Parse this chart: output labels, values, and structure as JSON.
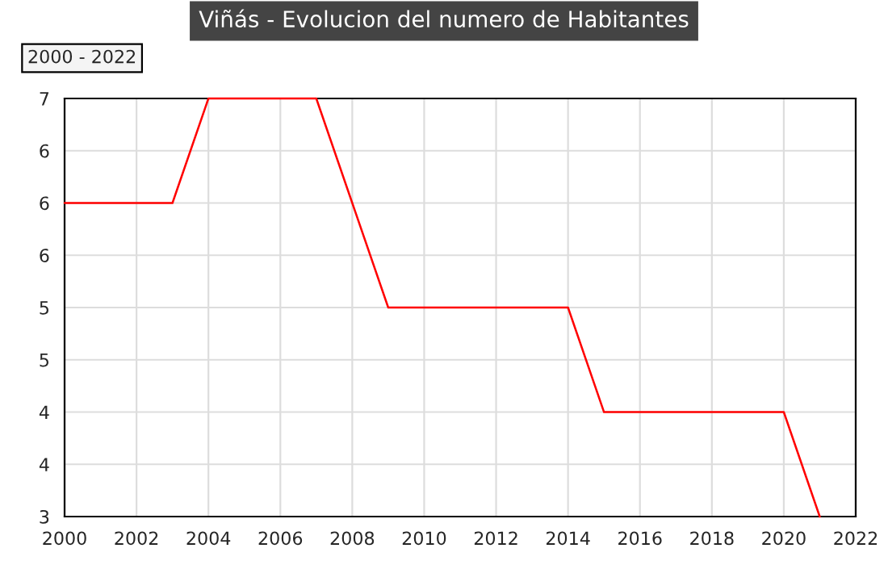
{
  "chart_data": {
    "type": "line",
    "title": "Viñás - Evolucion del numero de Habitantes",
    "annotations": [
      "2000 - 2022"
    ],
    "x": [
      2000,
      2001,
      2002,
      2003,
      2004,
      2005,
      2006,
      2007,
      2008,
      2009,
      2010,
      2011,
      2012,
      2013,
      2014,
      2015,
      2016,
      2017,
      2018,
      2019,
      2020,
      2021
    ],
    "series": [
      {
        "color": "#ff0000",
        "values": [
          6,
          6,
          6,
          6,
          7,
          7,
          7,
          7,
          6,
          5,
          5,
          5,
          5,
          5,
          5,
          4,
          4,
          4,
          4,
          4,
          4,
          3
        ]
      }
    ],
    "xlim": [
      2000,
      2022
    ],
    "xticks": [
      2000,
      2002,
      2004,
      2006,
      2008,
      2010,
      2012,
      2014,
      2016,
      2018,
      2020,
      2022
    ],
    "ylim": [
      3,
      7
    ],
    "yticks": [
      {
        "value": 3,
        "label": "3"
      },
      {
        "value": 3.5,
        "label": "4"
      },
      {
        "value": 4,
        "label": "4"
      },
      {
        "value": 4.5,
        "label": "5"
      },
      {
        "value": 5,
        "label": "5"
      },
      {
        "value": 5.5,
        "label": "6"
      },
      {
        "value": 6,
        "label": "6"
      },
      {
        "value": 6.5,
        "label": "6"
      },
      {
        "value": 7,
        "label": "7"
      }
    ],
    "grid": true,
    "marker": "none",
    "line_style": "solid"
  }
}
